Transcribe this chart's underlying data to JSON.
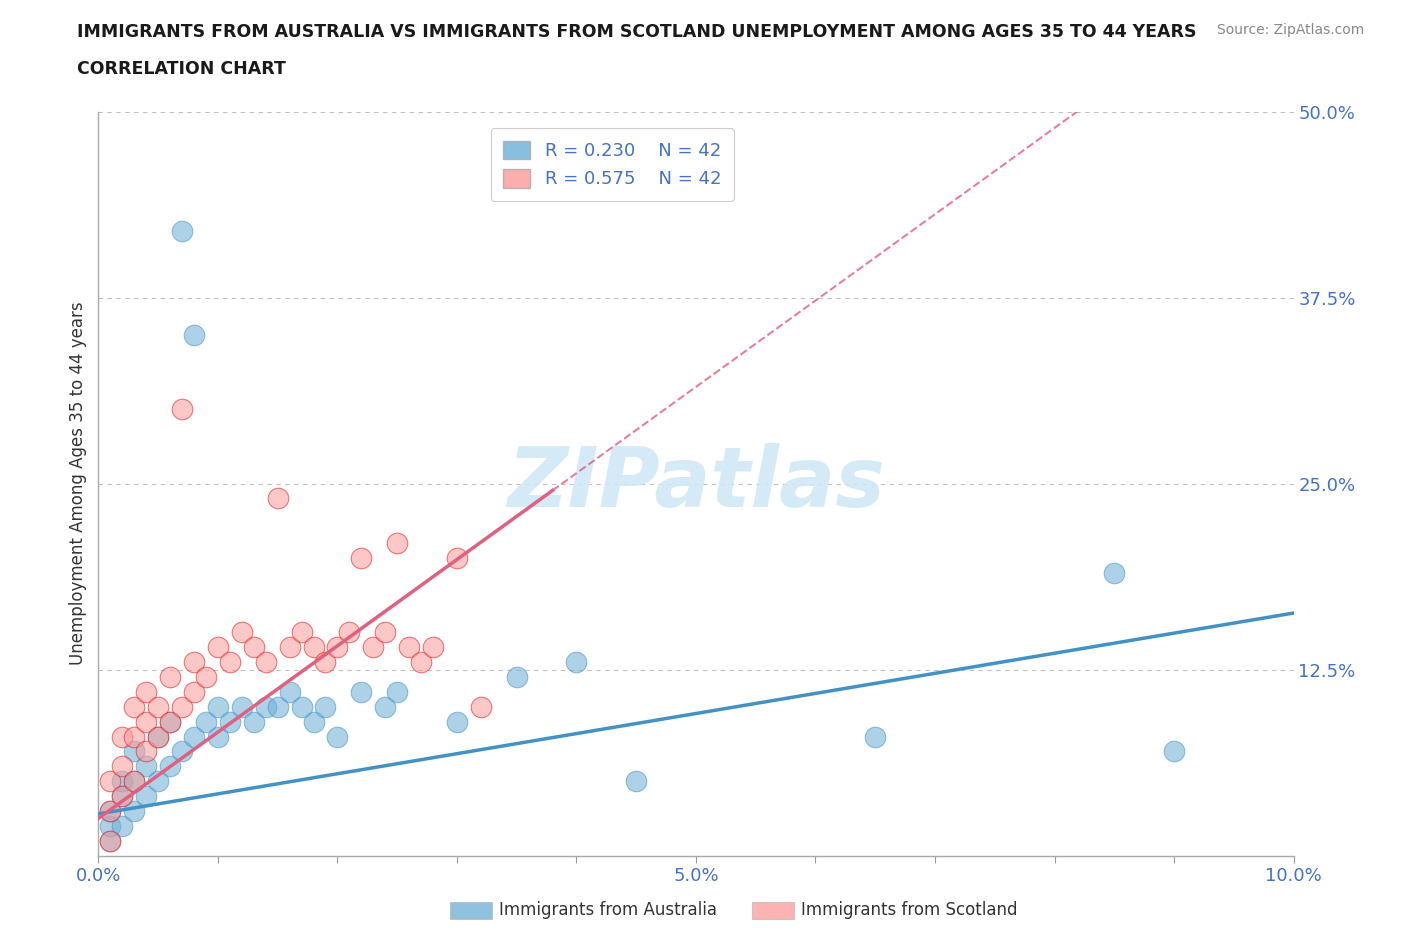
{
  "title_line1": "IMMIGRANTS FROM AUSTRALIA VS IMMIGRANTS FROM SCOTLAND UNEMPLOYMENT AMONG AGES 35 TO 44 YEARS",
  "title_line2": "CORRELATION CHART",
  "source_text": "Source: ZipAtlas.com",
  "ylabel": "Unemployment Among Ages 35 to 44 years",
  "xlim": [
    0.0,
    0.1
  ],
  "ylim": [
    0.0,
    0.5
  ],
  "australia_color": "#6baed6",
  "australia_edge_color": "#4292c6",
  "scotland_color": "#fb9a99",
  "scotland_edge_color": "#e31a1c",
  "australia_R": "0.230",
  "australia_N": "42",
  "scotland_R": "0.575",
  "scotland_N": "42",
  "aus_trend_slope": 1.35,
  "aus_trend_intercept": 0.028,
  "scot_trend_slope": 5.8,
  "scot_trend_intercept": 0.025,
  "background_color": "#ffffff",
  "grid_color": "#c0c0c0",
  "title_color": "#1a1a1a",
  "tick_color": "#4472c4",
  "watermark_color": "#d0e8f5",
  "australia_x": [
    0.001,
    0.001,
    0.001,
    0.002,
    0.002,
    0.002,
    0.003,
    0.003,
    0.003,
    0.004,
    0.004,
    0.005,
    0.005,
    0.006,
    0.006,
    0.007,
    0.007,
    0.008,
    0.008,
    0.009,
    0.01,
    0.01,
    0.011,
    0.012,
    0.013,
    0.014,
    0.015,
    0.016,
    0.017,
    0.018,
    0.019,
    0.02,
    0.022,
    0.024,
    0.025,
    0.03,
    0.035,
    0.04,
    0.045,
    0.065,
    0.085,
    0.09
  ],
  "australia_y": [
    0.01,
    0.02,
    0.03,
    0.02,
    0.04,
    0.05,
    0.03,
    0.05,
    0.07,
    0.04,
    0.06,
    0.05,
    0.08,
    0.06,
    0.09,
    0.07,
    0.42,
    0.08,
    0.35,
    0.09,
    0.08,
    0.1,
    0.09,
    0.1,
    0.09,
    0.1,
    0.1,
    0.11,
    0.1,
    0.09,
    0.1,
    0.08,
    0.11,
    0.1,
    0.11,
    0.09,
    0.12,
    0.13,
    0.05,
    0.08,
    0.19,
    0.07
  ],
  "scotland_x": [
    0.001,
    0.001,
    0.001,
    0.002,
    0.002,
    0.002,
    0.003,
    0.003,
    0.003,
    0.004,
    0.004,
    0.004,
    0.005,
    0.005,
    0.006,
    0.006,
    0.007,
    0.007,
    0.008,
    0.008,
    0.009,
    0.01,
    0.011,
    0.012,
    0.013,
    0.014,
    0.015,
    0.016,
    0.017,
    0.018,
    0.019,
    0.02,
    0.021,
    0.022,
    0.023,
    0.024,
    0.025,
    0.026,
    0.027,
    0.028,
    0.03,
    0.032
  ],
  "scotland_y": [
    0.01,
    0.03,
    0.05,
    0.04,
    0.06,
    0.08,
    0.05,
    0.08,
    0.1,
    0.07,
    0.09,
    0.11,
    0.08,
    0.1,
    0.09,
    0.12,
    0.1,
    0.3,
    0.11,
    0.13,
    0.12,
    0.14,
    0.13,
    0.15,
    0.14,
    0.13,
    0.24,
    0.14,
    0.15,
    0.14,
    0.13,
    0.14,
    0.15,
    0.2,
    0.14,
    0.15,
    0.21,
    0.14,
    0.13,
    0.14,
    0.2,
    0.1
  ]
}
